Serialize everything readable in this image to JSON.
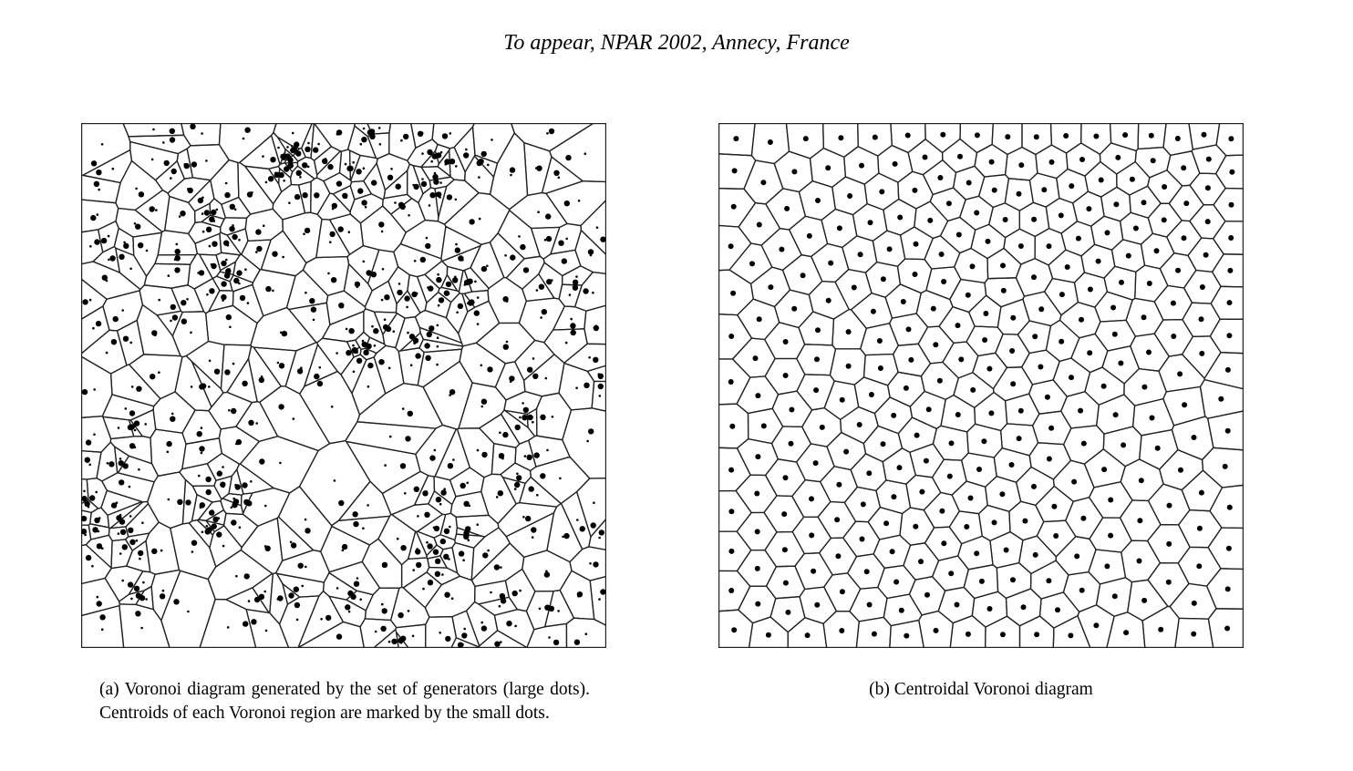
{
  "header": {
    "text": "To appear, NPAR 2002, Annecy, France"
  },
  "figures": [
    {
      "id": "a",
      "caption": "(a) Voronoi diagram generated by the set of generators (large dots). Centroids of each Voronoi region are marked by the small dots.",
      "style": "random-generators-with-centroids",
      "generator_count_approx": 420
    },
    {
      "id": "b",
      "caption": "(b) Centroidal Voronoi diagram",
      "style": "centroidal-relaxed-tessellation",
      "generator_count_approx": 300
    }
  ],
  "colors": {
    "edge": "#222222",
    "dot": "#000000",
    "background": "#ffffff"
  }
}
